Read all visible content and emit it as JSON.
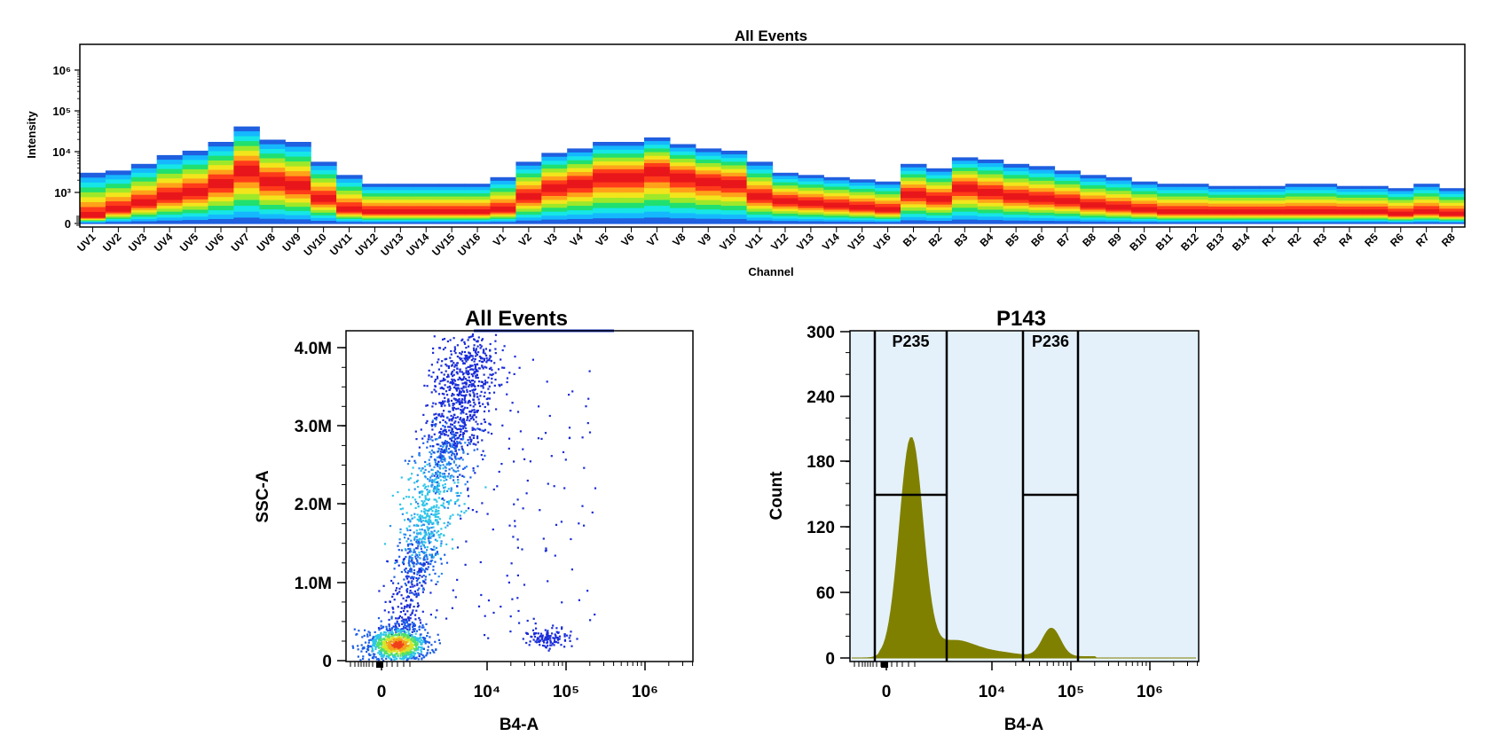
{
  "chart_data": [
    {
      "type": "heatmap",
      "title": "All Events",
      "xlabel": "Channel",
      "ylabel": "Intensity",
      "y_scale": "log",
      "y_ticks": [
        "0",
        "10³",
        "10⁴",
        "10⁵",
        "10⁶"
      ],
      "colormap": [
        "#1f5fe0",
        "#15b8ff",
        "#16e6e6",
        "#20e070",
        "#9ee82a",
        "#f2e51c",
        "#ffa21a",
        "#ff3b1a",
        "#e8161a"
      ],
      "categories": [
        "UV1",
        "UV2",
        "UV3",
        "UV4",
        "UV5",
        "UV6",
        "UV7",
        "UV8",
        "UV9",
        "UV10",
        "UV11",
        "UV12",
        "UV13",
        "UV14",
        "UV15",
        "UV16",
        "V1",
        "V2",
        "V3",
        "V4",
        "V5",
        "V6",
        "V7",
        "V8",
        "V9",
        "V10",
        "V11",
        "V12",
        "V13",
        "V14",
        "V15",
        "V16",
        "B1",
        "B2",
        "B3",
        "B4",
        "B5",
        "B6",
        "B7",
        "B8",
        "B9",
        "B10",
        "B11",
        "B12",
        "B13",
        "B14",
        "R1",
        "R2",
        "R3",
        "R4",
        "R5",
        "R6",
        "R7",
        "R8"
      ],
      "peak_log10_intensity": [
        3.55,
        3.6,
        3.75,
        3.95,
        4.05,
        4.25,
        4.6,
        4.3,
        4.25,
        3.8,
        3.5,
        3.3,
        3.3,
        3.3,
        3.3,
        3.3,
        3.45,
        3.8,
        4.0,
        4.1,
        4.25,
        4.25,
        4.35,
        4.2,
        4.1,
        4.05,
        3.8,
        3.55,
        3.5,
        3.45,
        3.4,
        3.35,
        3.75,
        3.65,
        3.9,
        3.85,
        3.75,
        3.7,
        3.6,
        3.5,
        3.45,
        3.35,
        3.3,
        3.3,
        3.25,
        3.25,
        3.25,
        3.3,
        3.3,
        3.25,
        3.25,
        3.2,
        3.3,
        3.2
      ],
      "median_log10_intensity": [
        2.55,
        2.7,
        2.85,
        3.0,
        3.1,
        3.3,
        3.6,
        3.35,
        3.25,
        2.95,
        2.7,
        2.65,
        2.65,
        2.65,
        2.65,
        2.65,
        2.7,
        3.0,
        3.2,
        3.3,
        3.45,
        3.45,
        3.6,
        3.45,
        3.35,
        3.3,
        3.0,
        2.9,
        2.85,
        2.8,
        2.75,
        2.7,
        3.05,
        2.95,
        3.2,
        3.1,
        3.0,
        2.95,
        2.9,
        2.8,
        2.75,
        2.7,
        2.65,
        2.65,
        2.65,
        2.65,
        2.65,
        2.65,
        2.65,
        2.65,
        2.65,
        2.6,
        2.65,
        2.6
      ]
    },
    {
      "type": "scatter",
      "title": "All Events",
      "xlabel": "B4-A",
      "ylabel": "SSC-A",
      "x_scale": "biexponential",
      "x_ticks": [
        "0",
        "10⁴",
        "10⁵",
        "10⁶"
      ],
      "y_ticks": [
        "0",
        "1.0M",
        "2.0M",
        "3.0M",
        "4.0M"
      ],
      "ylim": [
        0,
        4200000
      ],
      "populations": [
        {
          "name": "",
          "x_center": 600,
          "y_center": 200000,
          "density": "high"
        },
        {
          "name": "",
          "x_center": 2500,
          "y_center": 2100000,
          "density": "medium"
        },
        {
          "name": "",
          "x_center": 55000,
          "y_center": 320000,
          "density": "low"
        }
      ]
    },
    {
      "type": "area",
      "title": "P143",
      "xlabel": "B4-A",
      "ylabel": "Count",
      "x_scale": "biexponential",
      "x_ticks": [
        "0",
        "10⁴",
        "10⁵",
        "10⁶"
      ],
      "y_ticks": [
        "0",
        "60",
        "120",
        "180",
        "240",
        "300"
      ],
      "ylim": [
        0,
        300
      ],
      "fill_color": "#808000",
      "plot_background": "#e4f1fb",
      "peaks": [
        {
          "x": 600,
          "count": 200
        },
        {
          "x": 55000,
          "count": 26
        }
      ],
      "gates": [
        {
          "name": "P235",
          "x_min": -300,
          "x_max": 3000
        },
        {
          "name": "P236",
          "x_min": 22000,
          "x_max": 120000
        }
      ]
    }
  ]
}
